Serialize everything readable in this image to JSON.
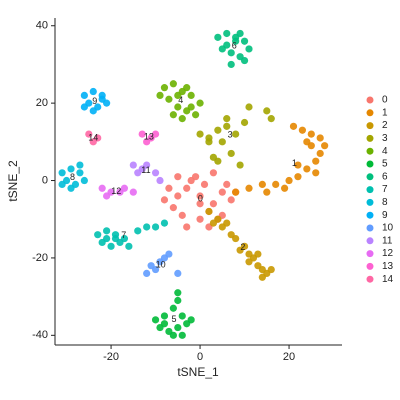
{
  "chart_data": {
    "type": "scatter",
    "x_label": "tSNE_1",
    "y_label": "tSNE_2",
    "xlim": [
      -32.6,
      31.9
    ],
    "ylim": [
      -42.5,
      42
    ],
    "xticks": [
      -20,
      0,
      20
    ],
    "yticks": [
      -40,
      -20,
      0,
      20,
      40
    ],
    "series": [
      {
        "name": "0",
        "color": "#F8766D",
        "x": [
          0,
          -3,
          3,
          -5,
          5,
          -2,
          2,
          -6,
          6,
          0,
          -4,
          4,
          -1,
          1,
          -7,
          7,
          -3,
          3,
          0,
          -5,
          5,
          -8,
          8,
          2
        ],
        "y": [
          -4,
          -2,
          -6,
          -4,
          -3,
          0,
          -8,
          -7,
          -1,
          -10,
          -9,
          -10,
          1,
          -1,
          -2,
          -5,
          -12,
          2,
          -6,
          1,
          -9,
          -5,
          -3,
          -12
        ]
      },
      {
        "name": "1",
        "color": "#E58700",
        "x": [
          8,
          11,
          14,
          17,
          20,
          22,
          24,
          26,
          27,
          28,
          27,
          25,
          23,
          21,
          25,
          22,
          19,
          15,
          24,
          26
        ],
        "y": [
          -3,
          -2,
          -1,
          -1,
          0,
          1,
          3,
          5,
          7,
          9,
          11,
          12,
          13,
          14,
          9,
          4,
          -2,
          -3,
          10,
          2
        ]
      },
      {
        "name": "2",
        "color": "#C99800",
        "x": [
          2,
          4,
          5,
          7,
          8,
          10,
          11,
          12,
          13,
          14,
          15,
          16,
          9,
          6,
          11,
          14,
          3,
          13
        ],
        "y": [
          -8,
          -10,
          -12,
          -14,
          -15,
          -17,
          -19,
          -20,
          -22,
          -23,
          -24,
          -23,
          -18,
          -11,
          -21,
          -25,
          -11,
          -19
        ]
      },
      {
        "name": "3",
        "color": "#A3A500",
        "x": [
          0,
          2,
          4,
          6,
          8,
          10,
          6,
          4,
          7,
          9,
          15,
          16,
          11,
          2,
          5,
          3
        ],
        "y": [
          12,
          11,
          13,
          14,
          12,
          15,
          16,
          5,
          7,
          4,
          18,
          16,
          19,
          10,
          10,
          6
        ]
      },
      {
        "name": "4",
        "color": "#6BB100",
        "x": [
          -8,
          -6,
          -4,
          -2,
          0,
          -7,
          -5,
          -3,
          -1,
          -9,
          -6,
          -4,
          -2,
          -5,
          -3
        ],
        "y": [
          24,
          25,
          23,
          22,
          20,
          21,
          19,
          18,
          17,
          22,
          17,
          16,
          19,
          22,
          24
        ]
      },
      {
        "name": "5",
        "color": "#00BA38",
        "x": [
          -10,
          -8,
          -6,
          -4,
          -2,
          -9,
          -7,
          -5,
          -3,
          -8,
          -6,
          -4,
          -5,
          -5
        ],
        "y": [
          -36,
          -35,
          -33,
          -35,
          -36,
          -38,
          -39,
          -38,
          -37,
          -37,
          -40,
          -40,
          -31,
          -29
        ]
      },
      {
        "name": "6",
        "color": "#00BF7D",
        "x": [
          4,
          6,
          8,
          10,
          11,
          5,
          7,
          9,
          6,
          8,
          10,
          7,
          9
        ],
        "y": [
          37,
          38,
          37,
          36,
          34,
          34,
          33,
          32,
          35,
          36,
          31,
          30,
          38
        ]
      },
      {
        "name": "7",
        "color": "#00C0AF",
        "x": [
          -23,
          -21,
          -19,
          -17,
          -22,
          -20,
          -18,
          -16,
          -21,
          -19,
          -14,
          -12,
          -10,
          -8
        ],
        "y": [
          -14,
          -13,
          -14,
          -15,
          -16,
          -17,
          -16,
          -17,
          -15,
          -15,
          -13,
          -12,
          -12,
          -11
        ]
      },
      {
        "name": "8",
        "color": "#00BCD8",
        "x": [
          -31,
          -29,
          -27,
          -30,
          -28,
          -26,
          -29,
          -27,
          -31
        ],
        "y": [
          2,
          3,
          2,
          0,
          -1,
          0,
          -2,
          4,
          -1
        ]
      },
      {
        "name": "9",
        "color": "#00B0F6",
        "x": [
          -26,
          -24,
          -22,
          -25,
          -23,
          -21,
          -24,
          -22,
          -26
        ],
        "y": [
          22,
          23,
          22,
          20,
          19,
          20,
          18,
          21,
          19
        ]
      },
      {
        "name": "10",
        "color": "#619CFF",
        "x": [
          -11,
          -9,
          -8,
          -10,
          -7,
          -12,
          -5
        ],
        "y": [
          -22,
          -21,
          -20,
          -23,
          -19,
          -24,
          -24
        ]
      },
      {
        "name": "11",
        "color": "#B983FF",
        "x": [
          -15,
          -13,
          -12,
          -14,
          -10,
          -9
        ],
        "y": [
          4,
          3,
          4,
          2,
          2,
          0
        ]
      },
      {
        "name": "12",
        "color": "#E76BF3",
        "x": [
          -22,
          -20,
          -18,
          -21,
          -15,
          -17
        ],
        "y": [
          -2,
          -3,
          -3,
          -4,
          -3,
          -2
        ]
      },
      {
        "name": "13",
        "color": "#FD61D1",
        "x": [
          -13,
          -11,
          -12,
          -10
        ],
        "y": [
          12,
          11,
          10,
          12
        ]
      },
      {
        "name": "14",
        "color": "#FF67A4",
        "x": [
          -25,
          -23,
          -24
        ],
        "y": [
          12,
          11,
          10
        ]
      }
    ]
  }
}
